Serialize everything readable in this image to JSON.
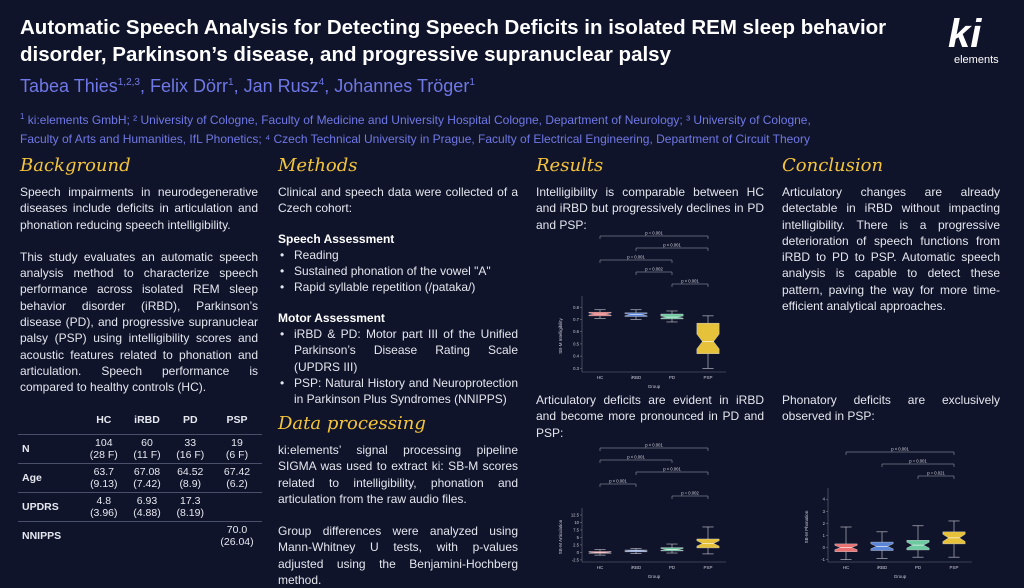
{
  "title": "Automatic Speech Analysis for Detecting Speech Deficits in isolated REM sleep behavior disorder, Parkinson’s disease, and progressive supranuclear palsy",
  "authors": [
    {
      "name": "Tabea Thies",
      "sup": "1,2,3"
    },
    {
      "name": "Felix Dörr",
      "sup": "1"
    },
    {
      "name": "Jan Rusz",
      "sup": "4"
    },
    {
      "name": "Johannes Tröger",
      "sup": "1"
    }
  ],
  "affiliations_line1": "ki:elements GmbH; ² University of Cologne, Faculty of Medicine and University Hospital Cologne, Department of Neurology; ³ University of Cologne,",
  "affiliations_line2": "Faculty of Arts and Humanities, IfL Phonetics; ⁴ Czech Technical University in Prague, Faculty of Electrical Engineering, Department of Circuit Theory",
  "logo": {
    "mark": "ki",
    "text": "elements"
  },
  "background": {
    "heading": "Background",
    "p1": "Speech impairments in neurodegenerative diseases include deficits in articulation and phonation reducing speech intelligibility.",
    "p2": "This study evaluates an automatic speech analysis method to characterize speech performance across isolated REM sleep behavior disorder (iRBD), Parkinson’s disease (PD), and progressive supranuclear palsy (PSP) using intelligibility scores and acoustic features related to phonation and articulation. Speech performance is compared to healthy controls (HC)."
  },
  "table": {
    "headers": [
      "",
      "HC",
      "iRBD",
      "PD",
      "PSP"
    ],
    "rows": [
      {
        "label": "N",
        "cells": [
          [
            "104",
            "(28 F)"
          ],
          [
            "60",
            "(11 F)"
          ],
          [
            "33",
            "(16 F)"
          ],
          [
            "19",
            "(6 F)"
          ]
        ]
      },
      {
        "label": "Age",
        "cells": [
          [
            "63.7",
            "(9.13)"
          ],
          [
            "67.08",
            "(7.42)"
          ],
          [
            "64.52",
            "(8.9)"
          ],
          [
            "67.42",
            "(6.2)"
          ]
        ]
      },
      {
        "label": "UPDRS",
        "cells": [
          [
            "4.8",
            "(3.96)"
          ],
          [
            "6.93",
            "(4.88)"
          ],
          [
            "17.3",
            "(8.19)"
          ],
          [
            "",
            ""
          ]
        ]
      },
      {
        "label": "NNIPPS",
        "cells": [
          [
            "",
            ""
          ],
          [
            "",
            ""
          ],
          [
            "",
            ""
          ],
          [
            "70.0",
            "(26.04)"
          ]
        ]
      }
    ]
  },
  "methods": {
    "heading": "Methods",
    "intro": "Clinical and speech data were collected of a Czech cohort:",
    "speech_heading": "Speech Assessment",
    "speech_items": [
      "Reading",
      "Sustained phonation of the vowel \"A\"",
      "Rapid syllable repetition (/pataka/)"
    ],
    "motor_heading": "Motor Assessment",
    "motor_items": [
      "iRBD & PD: Motor part III of the Unified Parkinson’s Disease Rating Scale (UPDRS III)",
      "PSP: Natural History and Neuroprotection in Parkinson Plus Syndromes (NNIPPS)"
    ]
  },
  "data_processing": {
    "heading": "Data processing",
    "p1": "ki:elements’ signal processing pipeline SIGMA was used to extract ki: SB-M scores related to intelligibility, phonation and articulation from the raw audio files.",
    "p2": "Group differences were analyzed using Mann-Whitney U tests, with p-values adjusted using the Benjamini-Hochberg method."
  },
  "results": {
    "heading": "Results",
    "intelligibility_text": "Intelligibility is comparable between HC and iRBD but progressively declines in PD and PSP:",
    "articulatory_text": "Articulatory deficits are evident in iRBD and become more pronounced in PD and PSP:",
    "phonatory_text": "Phonatory deficits are exclusively observed in PSP:"
  },
  "conclusion": {
    "heading": "Conclusion",
    "text": "Articulatory changes are already detectable in iRBD without impacting intelligibility. There is a progressive deterioration of speech functions from iRBD to PD to PSP. Automatic speech analysis is capable to detect these pattern, paving the way for more time-efficient analytical approaches."
  },
  "chart_data": [
    {
      "type": "box",
      "xlabel": "Group",
      "ylabel": "SB-M Intelligibility",
      "categories": [
        "HC",
        "iRBD",
        "PD",
        "PSP"
      ],
      "colors": [
        "#e87070",
        "#5b86d8",
        "#6dc9a0",
        "#e6c23a"
      ],
      "yticks": [
        0.3,
        0.4,
        0.5,
        0.6,
        0.7,
        0.8
      ],
      "ylim": [
        0.27,
        0.86
      ],
      "boxes": [
        {
          "q1": 0.73,
          "median": 0.745,
          "q3": 0.76,
          "whislo": 0.71,
          "whishi": 0.78
        },
        {
          "q1": 0.725,
          "median": 0.74,
          "q3": 0.755,
          "whislo": 0.7,
          "whishi": 0.78
        },
        {
          "q1": 0.705,
          "median": 0.72,
          "q3": 0.745,
          "whislo": 0.68,
          "whishi": 0.77
        },
        {
          "q1": 0.42,
          "median": 0.52,
          "q3": 0.67,
          "whislo": 0.3,
          "whishi": 0.73
        }
      ],
      "sig": [
        {
          "from": 0,
          "to": 3,
          "label": "p = 0.001"
        },
        {
          "from": 1,
          "to": 3,
          "label": "p < 0.001"
        },
        {
          "from": 0,
          "to": 2,
          "label": "p = 0.001"
        },
        {
          "from": 1,
          "to": 2,
          "label": "p = 0.002"
        },
        {
          "from": 2,
          "to": 3,
          "label": "p < 0.001"
        }
      ]
    },
    {
      "type": "box",
      "xlabel": "Group",
      "ylabel": "SB-M Articulation",
      "categories": [
        "HC",
        "iRBD",
        "PD",
        "PSP"
      ],
      "colors": [
        "#e87070",
        "#5b86d8",
        "#6dc9a0",
        "#e6c23a"
      ],
      "yticks": [
        -2.5,
        0.0,
        2.5,
        5.0,
        7.5,
        10.0,
        12.5
      ],
      "ylim": [
        -3.2,
        13.5
      ],
      "boxes": [
        {
          "q1": -0.3,
          "median": 0.0,
          "q3": 0.3,
          "whislo": -0.9,
          "whishi": 0.9
        },
        {
          "q1": 0.2,
          "median": 0.5,
          "q3": 0.8,
          "whislo": -0.4,
          "whishi": 1.3
        },
        {
          "q1": 0.5,
          "median": 1.0,
          "q3": 1.6,
          "whislo": -0.2,
          "whishi": 2.8
        },
        {
          "q1": 1.5,
          "median": 3.0,
          "q3": 4.5,
          "whislo": -0.5,
          "whishi": 8.5
        }
      ],
      "sig": [
        {
          "from": 0,
          "to": 3,
          "label": "p < 0.001"
        },
        {
          "from": 0,
          "to": 2,
          "label": "p < 0.001"
        },
        {
          "from": 1,
          "to": 3,
          "label": "p < 0.001"
        },
        {
          "from": 0,
          "to": 1,
          "label": "p < 0.001"
        },
        {
          "from": 2,
          "to": 3,
          "label": "p = 0.002"
        }
      ]
    },
    {
      "type": "box",
      "xlabel": "Group",
      "ylabel": "SB-M Phonation",
      "categories": [
        "HC",
        "iRBD",
        "PD",
        "PSP"
      ],
      "colors": [
        "#e87070",
        "#5b86d8",
        "#6dc9a0",
        "#e6c23a"
      ],
      "yticks": [
        -1,
        0,
        1,
        2,
        3,
        4
      ],
      "ylim": [
        -1.2,
        4.6
      ],
      "boxes": [
        {
          "q1": -0.35,
          "median": 0.0,
          "q3": 0.3,
          "whislo": -1.0,
          "whishi": 1.7
        },
        {
          "q1": -0.25,
          "median": 0.1,
          "q3": 0.45,
          "whislo": -0.9,
          "whishi": 1.3
        },
        {
          "q1": -0.2,
          "median": 0.2,
          "q3": 0.6,
          "whislo": -0.8,
          "whishi": 1.8
        },
        {
          "q1": 0.3,
          "median": 0.8,
          "q3": 1.3,
          "whislo": -0.8,
          "whishi": 2.2
        }
      ],
      "sig": [
        {
          "from": 0,
          "to": 3,
          "label": "p < 0.001"
        },
        {
          "from": 1,
          "to": 3,
          "label": "p = 0.001"
        },
        {
          "from": 2,
          "to": 3,
          "label": "p = 0.021"
        }
      ]
    }
  ]
}
